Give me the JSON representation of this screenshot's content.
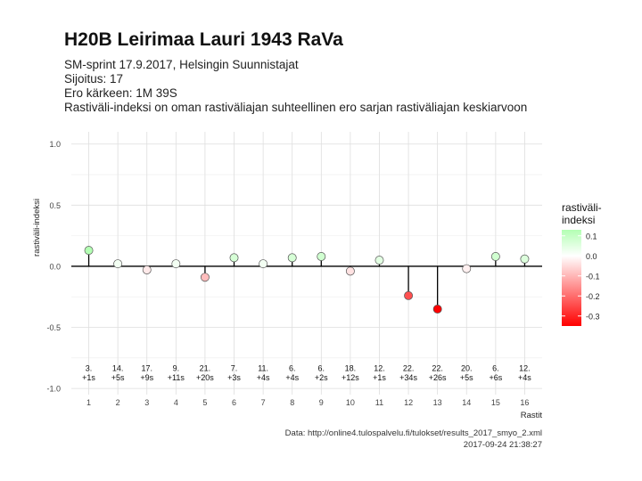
{
  "title": "H20B Leirimaa Lauri 1943 RaVa",
  "subtitle_lines": [
    "SM-sprint 17.9.2017, Helsingin Suunnistajat",
    "Sijoitus: 17",
    "Ero kärkeen: 1M 39S",
    "Rastiväli-indeksi on oman rastiväliajan suhteellinen ero sarjan rastiväliajan keskiarvoon"
  ],
  "caption": {
    "source": "Data: http://online4.tulospalvelu.fi/tulokset/results_2017_smyo_2.xml",
    "timestamp": "2017-09-24 21:38:27"
  },
  "chart_data": {
    "type": "scatter",
    "title": "H20B Leirimaa Lauri 1943 RaVa",
    "xlabel": "Rastit",
    "ylabel": "rastiväli-indeksi",
    "xlim": [
      0.4,
      16.6
    ],
    "ylim": [
      -1.05,
      1.1
    ],
    "x_ticks": [
      1,
      2,
      3,
      4,
      5,
      6,
      7,
      8,
      9,
      10,
      11,
      12,
      13,
      14,
      15,
      16
    ],
    "y_ticks": [
      -1.0,
      -0.5,
      0.0,
      0.5,
      1.0
    ],
    "y_tick_labels": [
      "-1.0",
      "-0.5",
      "0.0",
      "0.5",
      "1.0"
    ],
    "grid": true,
    "baseline": 0,
    "x": [
      1,
      2,
      3,
      4,
      5,
      6,
      7,
      8,
      9,
      10,
      11,
      12,
      13,
      14,
      15,
      16
    ],
    "values": [
      0.13,
      0.02,
      -0.03,
      0.02,
      -0.09,
      0.07,
      0.02,
      0.07,
      0.08,
      -0.04,
      0.05,
      -0.24,
      -0.35,
      -0.02,
      0.08,
      0.06
    ],
    "annotations": [
      {
        "rank": "3.",
        "diff": "+1s"
      },
      {
        "rank": "14.",
        "diff": "+5s"
      },
      {
        "rank": "17.",
        "diff": "+9s"
      },
      {
        "rank": "9.",
        "diff": "+11s"
      },
      {
        "rank": "21.",
        "diff": "+20s"
      },
      {
        "rank": "7.",
        "diff": "+3s"
      },
      {
        "rank": "11.",
        "diff": "+4s"
      },
      {
        "rank": "6.",
        "diff": "+4s"
      },
      {
        "rank": "6.",
        "diff": "+2s"
      },
      {
        "rank": "18.",
        "diff": "+12s"
      },
      {
        "rank": "12.",
        "diff": "+1s"
      },
      {
        "rank": "22.",
        "diff": "+34s"
      },
      {
        "rank": "22.",
        "diff": "+26s"
      },
      {
        "rank": "20.",
        "diff": "+5s"
      },
      {
        "rank": "6.",
        "diff": "+6s"
      },
      {
        "rank": "12.",
        "diff": "+4s"
      }
    ],
    "annotation_y": -0.93,
    "legend": {
      "title_lines": [
        "rastiväli-",
        "indeksi"
      ],
      "placement": "right",
      "ticks": [
        0.1,
        0.0,
        -0.1,
        -0.2,
        -0.3
      ],
      "tick_labels": [
        "0.1",
        "0.0",
        "-0.1",
        "-0.2",
        "-0.3"
      ],
      "range": [
        -0.35,
        0.13
      ]
    },
    "colors": {
      "low": "#ff0000",
      "mid": "#ffffff",
      "high": "#b3ffb3",
      "point_stroke": "#555555",
      "segment": "#000000",
      "grid": "#dedede",
      "grid_minor": "#ededed"
    }
  }
}
